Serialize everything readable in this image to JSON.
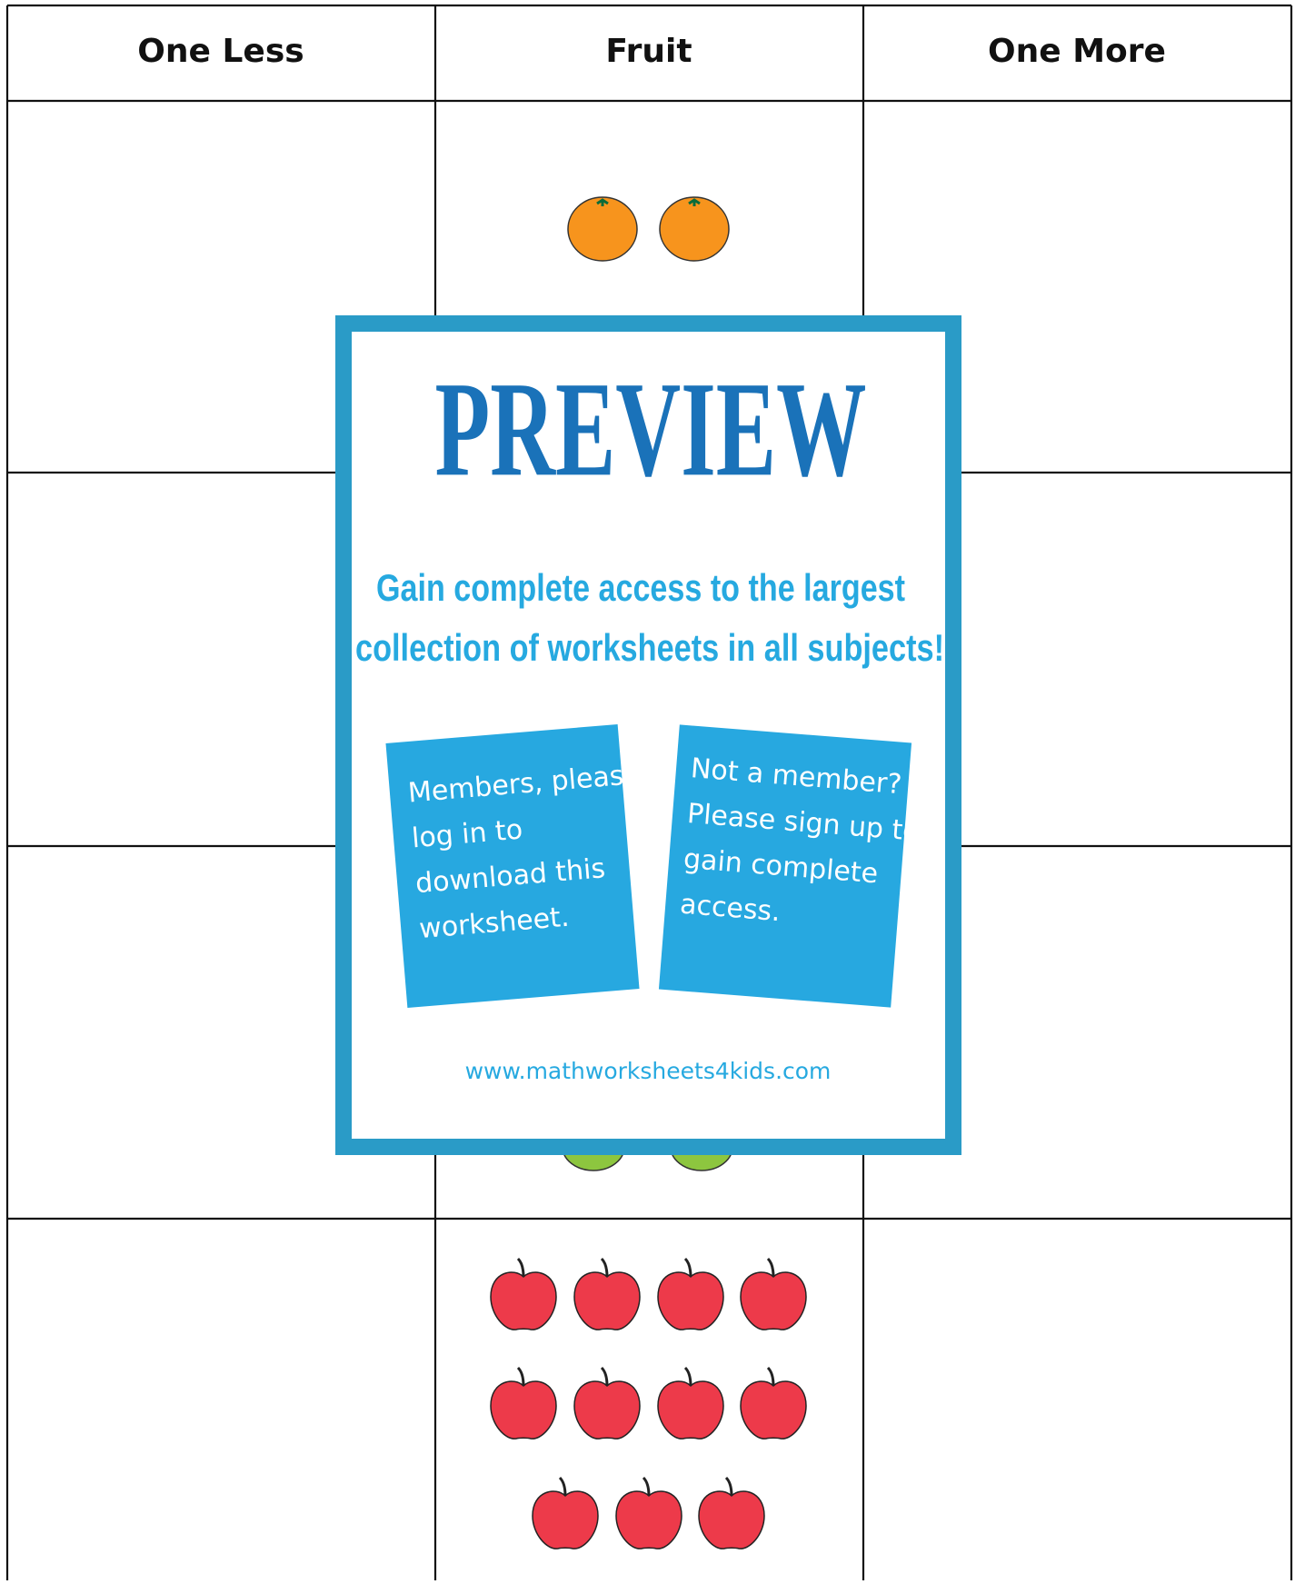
{
  "table": {
    "headers": [
      "One Less",
      "Fruit",
      "One More"
    ]
  },
  "preview": {
    "title": "PREVIEW",
    "message_lines": [
      "Gain complete access to the largest",
      "collection of worksheets in all subjects!"
    ],
    "members_card": [
      "Members, please",
      "log in to",
      "download this",
      "worksheet."
    ],
    "signup_card": [
      "Not a member?",
      "Please sign up to",
      "gain complete",
      "access."
    ],
    "url": "www.mathworksheets4kids.com"
  }
}
